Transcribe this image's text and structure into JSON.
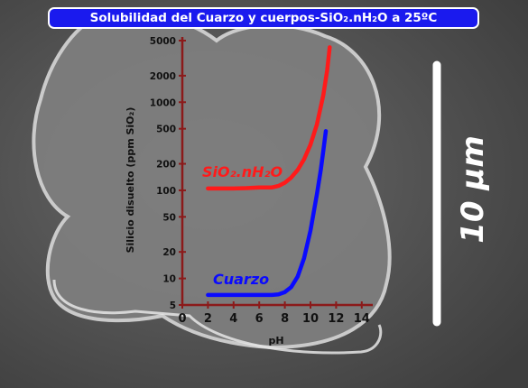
{
  "title": "Solubilidad del Cuarzo y cuerpos-SiO₂.nH₂O a 25ºC",
  "scale_bar": {
    "label": "10 μm",
    "color": "#ffffff"
  },
  "colors": {
    "axis": "#8b1a1a",
    "background": "#5c5c5c"
  },
  "chart_data": {
    "type": "line",
    "title": "Solubilidad del Cuarzo y cuerpos-SiO₂.nH₂O a 25ºC",
    "xlabel": "pH",
    "ylabel": "Silicio disuelto (ppm SiO₂)",
    "xlim": [
      0,
      15
    ],
    "ylim": [
      5,
      5000
    ],
    "yscale": "log",
    "x_ticks": [
      0,
      2,
      4,
      6,
      8,
      10,
      12,
      14
    ],
    "y_ticks": [
      5,
      10,
      20,
      50,
      100,
      200,
      500,
      1000,
      2000,
      5000
    ],
    "grid": false,
    "series": [
      {
        "name": "SiO₂.nH₂O",
        "color": "#ff1a1a",
        "x": [
          2,
          3,
          4,
          5,
          6,
          7,
          7.5,
          8,
          8.5,
          9,
          9.5,
          10,
          10.5,
          11,
          11.3,
          11.5
        ],
        "y": [
          105,
          105,
          105,
          106,
          108,
          108,
          112,
          122,
          140,
          170,
          225,
          330,
          560,
          1200,
          2300,
          4200
        ]
      },
      {
        "name": "Cuarzo",
        "color": "#0a0aff",
        "x": [
          2,
          3,
          4,
          5,
          6,
          7,
          7.5,
          8,
          8.5,
          9,
          9.5,
          10,
          10.5,
          10.8,
          11,
          11.2
        ],
        "y": [
          6.5,
          6.5,
          6.5,
          6.5,
          6.5,
          6.5,
          6.6,
          7,
          8,
          10.5,
          17,
          35,
          90,
          170,
          280,
          470
        ]
      }
    ]
  }
}
